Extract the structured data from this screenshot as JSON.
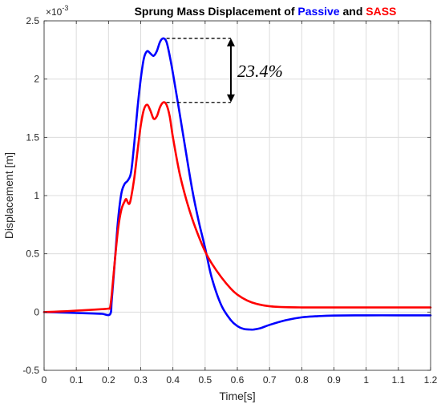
{
  "chart_data": {
    "type": "line",
    "title": {
      "parts": [
        {
          "text": "Sprung Mass Displacement of ",
          "color": "#000000"
        },
        {
          "text": "Passive",
          "color": "#0000FF"
        },
        {
          "text": " and ",
          "color": "#000000"
        },
        {
          "text": "SASS",
          "color": "#FF0000"
        }
      ]
    },
    "xlabel": "Time[s]",
    "ylabel": "Displacement [m]",
    "y_exponent_label": "×10",
    "y_exponent_power": "-3",
    "xlim": [
      0,
      1.2
    ],
    "ylim": [
      -0.5,
      2.5
    ],
    "xticks": [
      0,
      0.1,
      0.2,
      0.3,
      0.4,
      0.5,
      0.6,
      0.7,
      0.8,
      0.9,
      1,
      1.1,
      1.2
    ],
    "xtick_labels": [
      "0",
      "0.1",
      "0.2",
      "0.3",
      "0.4",
      "0.5",
      "0.6",
      "0.7",
      "0.8",
      "0.9",
      "1",
      "1.1",
      "1.2"
    ],
    "yticks": [
      -0.5,
      0,
      0.5,
      1,
      1.5,
      2,
      2.5
    ],
    "ytick_labels": [
      "-0.5",
      "0",
      "0.5",
      "1",
      "1.5",
      "2",
      "2.5"
    ],
    "grid": true,
    "series": [
      {
        "color": "#0000FF",
        "x": [
          0,
          0.05,
          0.1,
          0.15,
          0.18,
          0.205,
          0.21,
          0.22,
          0.23,
          0.24,
          0.25,
          0.26,
          0.27,
          0.28,
          0.29,
          0.3,
          0.31,
          0.32,
          0.33,
          0.34,
          0.35,
          0.36,
          0.37,
          0.38,
          0.39,
          0.4,
          0.42,
          0.44,
          0.46,
          0.48,
          0.5,
          0.52,
          0.55,
          0.58,
          0.6,
          0.62,
          0.64,
          0.65,
          0.67,
          0.7,
          0.75,
          0.8,
          0.85,
          0.9,
          1.0,
          1.1,
          1.2
        ],
        "y": [
          0,
          -0.003,
          -0.008,
          -0.012,
          -0.015,
          -0.018,
          0.1,
          0.45,
          0.8,
          1.02,
          1.1,
          1.13,
          1.2,
          1.45,
          1.75,
          2.0,
          2.18,
          2.24,
          2.22,
          2.2,
          2.24,
          2.32,
          2.35,
          2.32,
          2.2,
          2.05,
          1.72,
          1.38,
          1.05,
          0.78,
          0.55,
          0.3,
          0.06,
          -0.07,
          -0.12,
          -0.145,
          -0.15,
          -0.15,
          -0.14,
          -0.11,
          -0.07,
          -0.045,
          -0.035,
          -0.03,
          -0.028,
          -0.028,
          -0.028
        ]
      },
      {
        "color": "#FF0000",
        "x": [
          0,
          0.05,
          0.1,
          0.15,
          0.18,
          0.2,
          0.205,
          0.21,
          0.22,
          0.23,
          0.24,
          0.25,
          0.255,
          0.26,
          0.265,
          0.27,
          0.28,
          0.29,
          0.3,
          0.31,
          0.32,
          0.33,
          0.34,
          0.35,
          0.36,
          0.37,
          0.38,
          0.39,
          0.4,
          0.42,
          0.44,
          0.46,
          0.48,
          0.5,
          0.52,
          0.55,
          0.58,
          0.6,
          0.63,
          0.66,
          0.7,
          0.75,
          0.8,
          0.9,
          1.0,
          1.1,
          1.2
        ],
        "y": [
          0,
          0.005,
          0.012,
          0.02,
          0.025,
          0.03,
          0.04,
          0.15,
          0.45,
          0.72,
          0.88,
          0.95,
          0.97,
          0.94,
          0.93,
          0.98,
          1.15,
          1.38,
          1.6,
          1.74,
          1.78,
          1.73,
          1.66,
          1.68,
          1.76,
          1.8,
          1.78,
          1.68,
          1.5,
          1.2,
          0.98,
          0.8,
          0.65,
          0.52,
          0.42,
          0.3,
          0.2,
          0.15,
          0.1,
          0.07,
          0.05,
          0.042,
          0.04,
          0.04,
          0.04,
          0.04,
          0.04
        ]
      }
    ],
    "annotation": {
      "text": "23.4%",
      "from_y": 2.35,
      "to_y": 1.8,
      "x_start": 0.38,
      "x_end": 0.58
    }
  }
}
